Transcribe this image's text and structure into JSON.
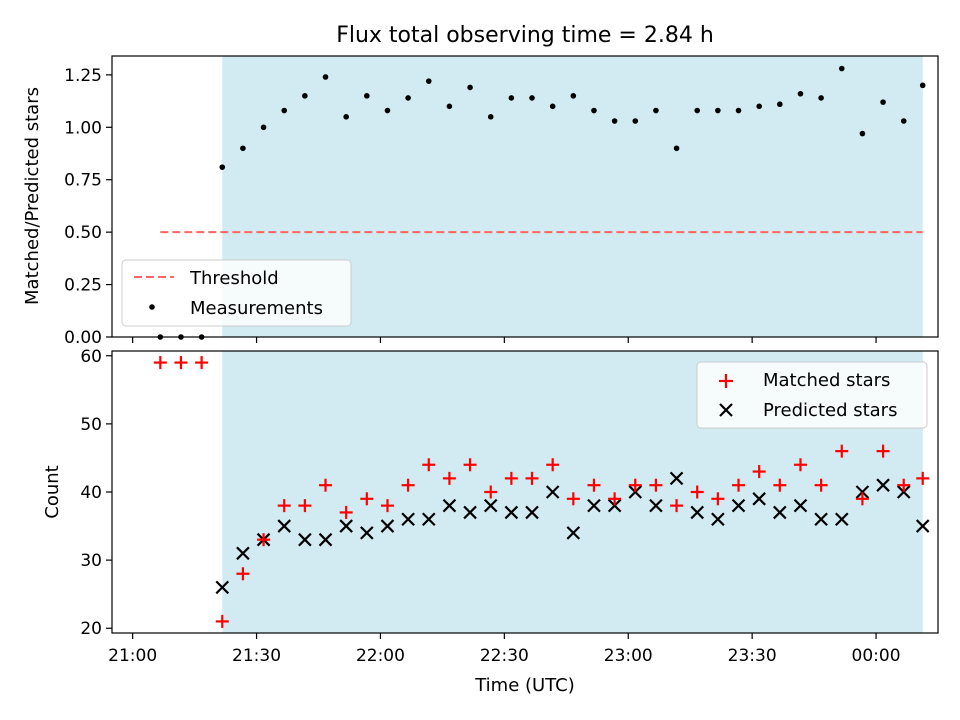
{
  "figure": {
    "title": "Flux total observing time = 2.84 h",
    "xlabel": "Time (UTC)",
    "x_tick_labels": [
      "21:00",
      "21:30",
      "22:00",
      "22:30",
      "23:00",
      "23:30",
      "00:00"
    ]
  },
  "colors": {
    "shade": "#add8e6",
    "threshold": "#ff6666",
    "matched": "#ff0000",
    "predicted": "#000000",
    "measurement": "#000000"
  },
  "chart_data": [
    {
      "type": "scatter",
      "panel": "top",
      "title": "Flux total observing time = 2.84 h",
      "xlabel": "",
      "ylabel": "Matched/Predicted stars",
      "x_unit": "minutes after 21:00 UTC",
      "xlim": [
        -5,
        195
      ],
      "ylim": [
        0,
        1.34
      ],
      "y_ticks": [
        "0.00",
        "0.25",
        "0.50",
        "0.75",
        "1.00",
        "1.25"
      ],
      "shaded_span": [
        21.7,
        191.3
      ],
      "legend_position": "lower left",
      "threshold": {
        "name": "Threshold",
        "value": 0.5,
        "x_range": [
          6.7,
          191.3
        ]
      },
      "series": [
        {
          "name": "Measurements",
          "x": [
            6.7,
            11.7,
            16.7,
            21.7,
            26.7,
            31.7,
            36.7,
            41.7,
            46.7,
            51.7,
            56.7,
            61.7,
            66.7,
            71.7,
            76.7,
            81.7,
            86.7,
            91.7,
            96.7,
            101.7,
            106.7,
            111.7,
            116.7,
            121.7,
            126.7,
            131.7,
            136.7,
            141.7,
            146.7,
            151.7,
            156.7,
            161.7,
            166.7,
            171.7,
            176.7,
            181.7,
            186.7,
            191.3
          ],
          "y": [
            0,
            0,
            0,
            0.81,
            0.9,
            1.0,
            1.08,
            1.15,
            1.24,
            1.05,
            1.15,
            1.08,
            1.14,
            1.22,
            1.1,
            1.19,
            1.05,
            1.14,
            1.14,
            1.1,
            1.15,
            1.08,
            1.03,
            1.03,
            1.08,
            0.9,
            1.08,
            1.08,
            1.08,
            1.1,
            1.11,
            1.16,
            1.14,
            1.28,
            0.97,
            1.12,
            1.03,
            1.2
          ]
        }
      ]
    },
    {
      "type": "scatter",
      "panel": "bottom",
      "xlabel": "Time (UTC)",
      "ylabel": "Count",
      "x_unit": "minutes after 21:00 UTC",
      "xlim": [
        -5,
        195
      ],
      "ylim": [
        19.3,
        60.7
      ],
      "y_ticks": [
        "20",
        "30",
        "40",
        "50",
        "60"
      ],
      "shaded_span": [
        21.7,
        191.3
      ],
      "legend_position": "upper right",
      "series": [
        {
          "name": "Matched stars",
          "marker": "+",
          "x": [
            6.7,
            11.7,
            16.7,
            21.7,
            26.7,
            31.7,
            36.7,
            41.7,
            46.7,
            51.7,
            56.7,
            61.7,
            66.7,
            71.7,
            76.7,
            81.7,
            86.7,
            91.7,
            96.7,
            101.7,
            106.7,
            111.7,
            116.7,
            121.7,
            126.7,
            131.7,
            136.7,
            141.7,
            146.7,
            151.7,
            156.7,
            161.7,
            166.7,
            171.7,
            176.7,
            181.7,
            186.7,
            191.3
          ],
          "y": [
            59,
            59,
            59,
            21,
            28,
            33,
            38,
            38,
            41,
            37,
            39,
            38,
            41,
            44,
            42,
            44,
            40,
            42,
            42,
            44,
            39,
            41,
            39,
            41,
            41,
            38,
            40,
            39,
            41,
            43,
            41,
            44,
            41,
            46,
            39,
            46,
            41,
            42
          ]
        },
        {
          "name": "Predicted stars",
          "marker": "x",
          "x": [
            21.7,
            26.7,
            31.7,
            36.7,
            41.7,
            46.7,
            51.7,
            56.7,
            61.7,
            66.7,
            71.7,
            76.7,
            81.7,
            86.7,
            91.7,
            96.7,
            101.7,
            106.7,
            111.7,
            116.7,
            121.7,
            126.7,
            131.7,
            136.7,
            141.7,
            146.7,
            151.7,
            156.7,
            161.7,
            166.7,
            171.7,
            176.7,
            181.7,
            186.7,
            191.3
          ],
          "y": [
            26,
            31,
            33,
            35,
            33,
            33,
            35,
            34,
            35,
            36,
            36,
            38,
            37,
            38,
            37,
            37,
            40,
            34,
            38,
            38,
            40,
            38,
            42,
            37,
            36,
            38,
            39,
            37,
            38,
            36,
            36,
            40,
            41,
            40,
            35
          ]
        }
      ]
    }
  ]
}
